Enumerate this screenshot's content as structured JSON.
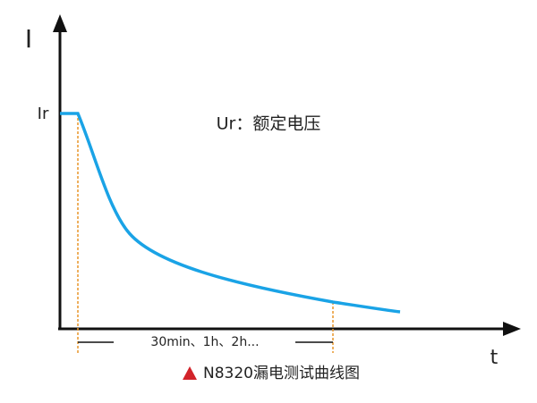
{
  "axis": {
    "y_label": "I",
    "x_label": "t",
    "ir_label": "Ir"
  },
  "annotation": "Ur：额定电压",
  "interval_label": "30min、1h、2h...",
  "caption": "N8320漏电测试曲线图"
}
